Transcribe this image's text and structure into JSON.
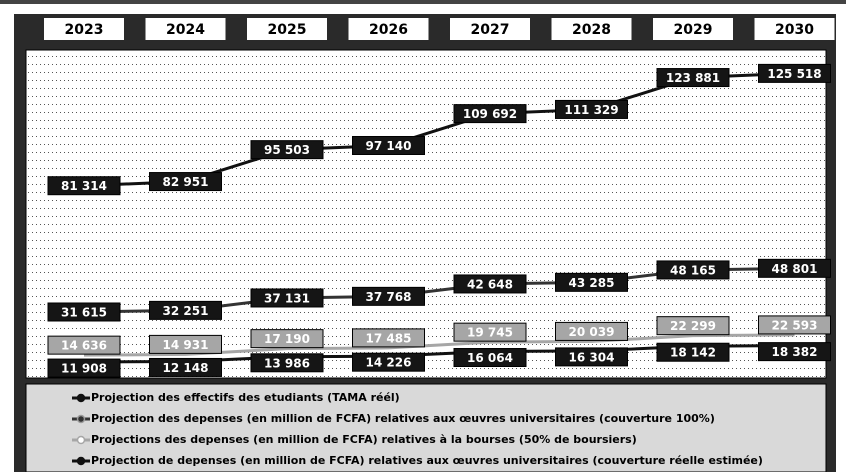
{
  "chart_data": {
    "type": "line",
    "categories": [
      "2023",
      "2024",
      "2025",
      "2026",
      "2027",
      "2028",
      "2029",
      "2030"
    ],
    "series": [
      {
        "name": "Projection des effectifs des etudiants (TAMA réél)",
        "color": "#111111",
        "values": [
          81314,
          82951,
          95503,
          97140,
          109692,
          111329,
          123881,
          125518
        ],
        "value_labels": [
          "81 314",
          "82 951",
          "95 503",
          "97 140",
          "109 692",
          "111 329",
          "123 881",
          "125 518"
        ]
      },
      {
        "name": "Projection des depenses (en million de FCFA) relatives aux œuvres universitaires (couverture 100%)",
        "color": "#333333",
        "values": [
          31615,
          32251,
          37131,
          37768,
          42648,
          43285,
          48165,
          48801
        ],
        "value_labels": [
          "31 615",
          "32 251",
          "37 131",
          "37 768",
          "42 648",
          "43 285",
          "48 165",
          "48 801"
        ]
      },
      {
        "name": "Projections des depenses (en million de FCFA) relatives à la bourses (50% de boursiers)",
        "color": "#a6a6a6",
        "values": [
          14636,
          14931,
          17190,
          17485,
          19745,
          20039,
          22299,
          22593
        ],
        "value_labels": [
          "14 636",
          "14 931",
          "17 190",
          "17 485",
          "19 745",
          "20 039",
          "22 299",
          "22 593"
        ]
      },
      {
        "name": "Projection de depenses (en million de FCFA) relatives aux œuvres universitaires (couverture réelle estimée)",
        "color": "#111111",
        "values": [
          11908,
          12148,
          13986,
          14226,
          16064,
          16304,
          18142,
          18382
        ],
        "value_labels": [
          "11 908",
          "12 148",
          "13 986",
          "14 226",
          "16 064",
          "16 304",
          "18 142",
          "18 382"
        ]
      }
    ],
    "ylim": [
      8000,
      130000
    ]
  }
}
